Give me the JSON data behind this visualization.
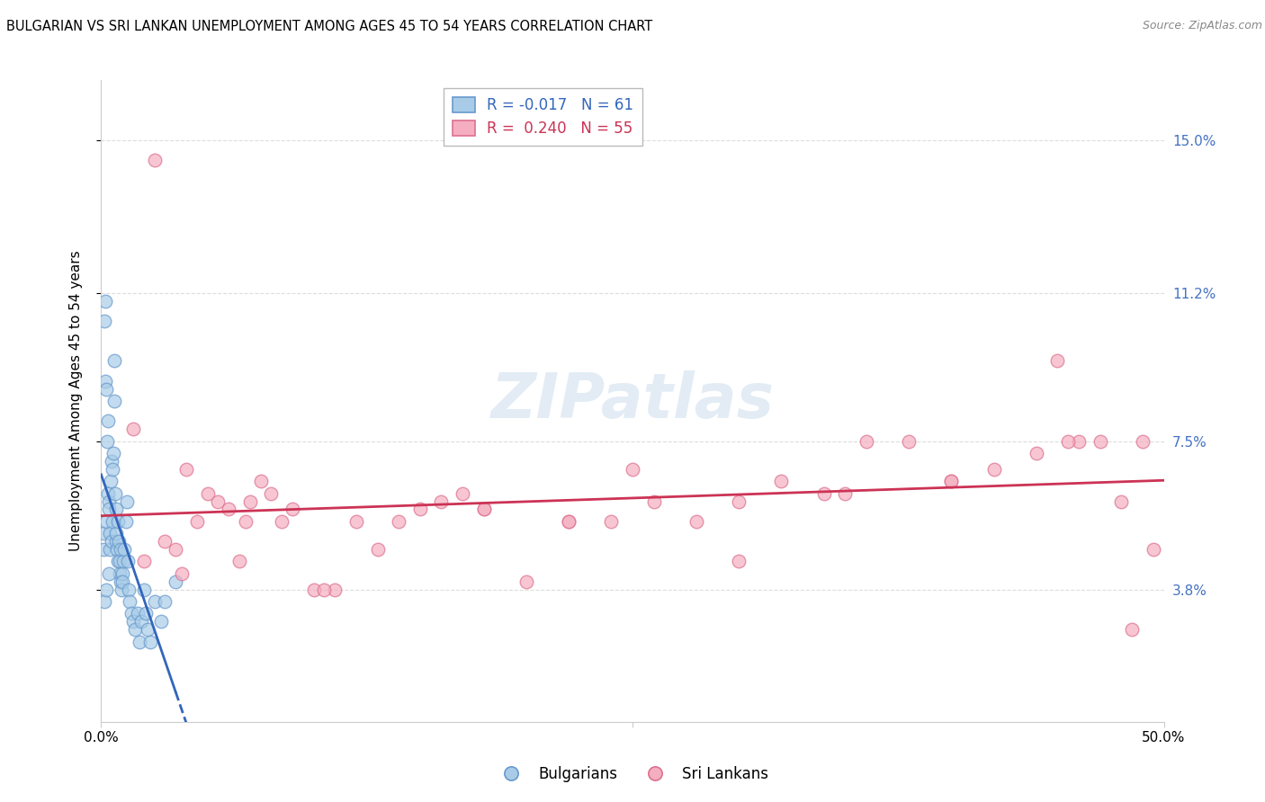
{
  "title": "BULGARIAN VS SRI LANKAN UNEMPLOYMENT AMONG AGES 45 TO 54 YEARS CORRELATION CHART",
  "source": "Source: ZipAtlas.com",
  "ylabel": "Unemployment Among Ages 45 to 54 years",
  "ytick_values": [
    3.8,
    7.5,
    11.2,
    15.0
  ],
  "ytick_labels": [
    "3.8%",
    "7.5%",
    "11.2%",
    "15.0%"
  ],
  "xlim": [
    0.0,
    50.0
  ],
  "ylim": [
    0.5,
    16.5
  ],
  "blue_color": "#a8cce8",
  "pink_color": "#f4aec0",
  "blue_edge": "#6899cc",
  "pink_edge": "#dd7090",
  "trend_blue_color": "#3366bb",
  "trend_pink_color": "#cc3355",
  "background_color": "#ffffff",
  "grid_color": "#dddddd",
  "bulgarians_x": [
    0.1,
    0.12,
    0.15,
    0.18,
    0.2,
    0.22,
    0.25,
    0.28,
    0.3,
    0.32,
    0.35,
    0.38,
    0.4,
    0.42,
    0.45,
    0.48,
    0.5,
    0.52,
    0.55,
    0.58,
    0.6,
    0.62,
    0.65,
    0.68,
    0.7,
    0.72,
    0.75,
    0.78,
    0.8,
    0.82,
    0.85,
    0.88,
    0.9,
    0.92,
    0.95,
    0.98,
    1.0,
    1.05,
    1.1,
    1.15,
    1.2,
    1.25,
    1.3,
    1.35,
    1.4,
    1.5,
    1.6,
    1.7,
    1.8,
    1.9,
    2.0,
    2.1,
    2.2,
    2.3,
    2.5,
    2.8,
    3.0,
    3.5,
    0.15,
    0.25,
    0.35
  ],
  "bulgarians_y": [
    4.8,
    5.2,
    10.5,
    11.0,
    9.0,
    8.8,
    5.5,
    7.5,
    6.2,
    8.0,
    6.0,
    5.8,
    5.2,
    4.8,
    6.5,
    5.0,
    7.0,
    5.5,
    6.8,
    7.2,
    8.5,
    9.5,
    6.2,
    5.8,
    5.0,
    5.2,
    4.8,
    5.5,
    4.5,
    5.0,
    4.2,
    4.5,
    4.0,
    4.8,
    3.8,
    4.2,
    4.0,
    4.5,
    4.8,
    5.5,
    6.0,
    4.5,
    3.8,
    3.5,
    3.2,
    3.0,
    2.8,
    3.2,
    2.5,
    3.0,
    3.8,
    3.2,
    2.8,
    2.5,
    3.5,
    3.0,
    3.5,
    4.0,
    3.5,
    3.8,
    4.2
  ],
  "srilankans_x": [
    2.5,
    1.5,
    2.0,
    3.0,
    3.5,
    4.0,
    4.5,
    5.0,
    5.5,
    6.0,
    6.5,
    7.0,
    7.5,
    8.0,
    8.5,
    9.0,
    10.0,
    11.0,
    12.0,
    13.0,
    14.0,
    15.0,
    16.0,
    17.0,
    18.0,
    20.0,
    22.0,
    24.0,
    26.0,
    28.0,
    30.0,
    32.0,
    34.0,
    36.0,
    38.0,
    40.0,
    42.0,
    44.0,
    45.0,
    46.0,
    47.0,
    48.0,
    49.0,
    49.5,
    3.8,
    6.8,
    10.5,
    18.0,
    35.0,
    40.0,
    45.5,
    48.5,
    25.0,
    30.0,
    22.0
  ],
  "srilankans_y": [
    14.5,
    7.8,
    4.5,
    5.0,
    4.8,
    6.8,
    5.5,
    6.2,
    6.0,
    5.8,
    4.5,
    6.0,
    6.5,
    6.2,
    5.5,
    5.8,
    3.8,
    3.8,
    5.5,
    4.8,
    5.5,
    5.8,
    6.0,
    6.2,
    5.8,
    4.0,
    5.5,
    5.5,
    6.0,
    5.5,
    6.0,
    6.5,
    6.2,
    7.5,
    7.5,
    6.5,
    6.8,
    7.2,
    9.5,
    7.5,
    7.5,
    6.0,
    7.5,
    4.8,
    4.2,
    5.5,
    3.8,
    5.8,
    6.2,
    6.5,
    7.5,
    2.8,
    6.8,
    4.5,
    5.5
  ],
  "r_blue": -0.017,
  "n_blue": 61,
  "r_pink": 0.24,
  "n_pink": 55,
  "title_fontsize": 10.5,
  "tick_fontsize": 11,
  "label_fontsize": 11
}
